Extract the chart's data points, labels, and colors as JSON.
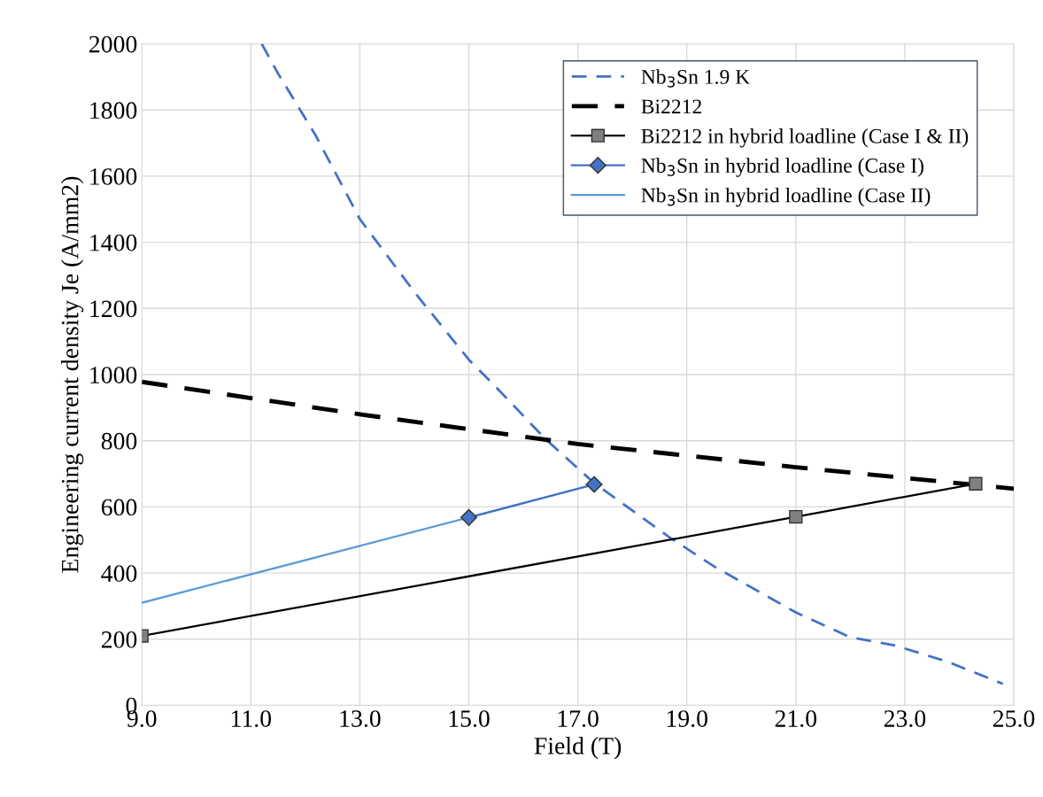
{
  "chart_data": {
    "type": "line",
    "xlabel": "Field (T)",
    "ylabel": "Engineering current density Je (A/mm2)",
    "xlim": [
      9,
      25
    ],
    "ylim": [
      0,
      2000
    ],
    "xticks": [
      {
        "value": 9,
        "label": "9.0"
      },
      {
        "value": 11,
        "label": "11.0"
      },
      {
        "value": 13,
        "label": "13.0"
      },
      {
        "value": 15,
        "label": "15.0"
      },
      {
        "value": 17,
        "label": "17.0"
      },
      {
        "value": 19,
        "label": "19.0"
      },
      {
        "value": 21,
        "label": "21.0"
      },
      {
        "value": 23,
        "label": "23.0"
      },
      {
        "value": 25,
        "label": "25.0"
      }
    ],
    "yticks": [
      0,
      200,
      400,
      600,
      800,
      1000,
      1200,
      1400,
      1600,
      1800,
      2000
    ],
    "grid": true,
    "legend": "top right",
    "series": [
      {
        "name": "Nb$_{3}$Sn 1.9 K",
        "color": "#4472c4",
        "line_style": "dashed",
        "marker": "none",
        "x": [
          11.2,
          11.5,
          12.2,
          13,
          14,
          15,
          15.5,
          16.4,
          17.3,
          18.7,
          19.5,
          21,
          22,
          22.8,
          23.8,
          24.8
        ],
        "values": [
          2000,
          1910,
          1720,
          1470,
          1250,
          1045,
          962,
          806,
          672,
          506,
          420,
          281,
          206,
          182,
          131,
          65
        ]
      },
      {
        "name": "Bi2212",
        "color": "#000000",
        "line_style": "dashed",
        "marker": "none",
        "x": [
          9,
          13,
          17,
          21,
          25
        ],
        "values": [
          978,
          880,
          790,
          720,
          655
        ]
      },
      {
        "name": "Bi2212 in hybrid loadline (Case I & II)",
        "color": "#000000",
        "line_style": "solid",
        "marker": "square",
        "x": [
          9,
          21,
          24.3
        ],
        "values": [
          210,
          570,
          670
        ]
      },
      {
        "name": "Nb$_{3}$Sn in hybrid loadline (Case I)",
        "color": "#4472c4",
        "line_style": "solid",
        "marker": "diamond",
        "x": [
          15,
          17.3
        ],
        "values": [
          568,
          668
        ]
      },
      {
        "name": "Nb$_{3}$Sn in hybrid loadline (Case II)",
        "color": "#5b9bd5",
        "line_style": "solid",
        "marker": "none",
        "x": [
          9,
          15,
          17.3
        ],
        "values": [
          310,
          568,
          668
        ]
      }
    ]
  }
}
